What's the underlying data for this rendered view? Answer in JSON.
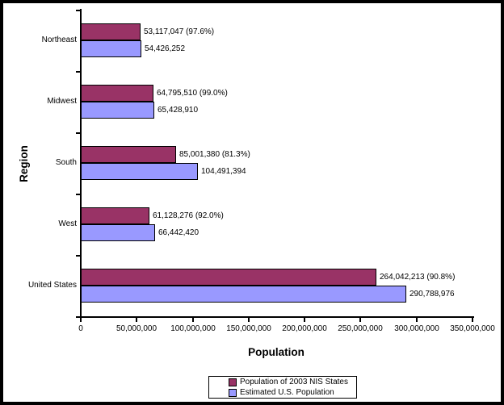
{
  "chart_data": {
    "type": "bar",
    "orientation": "horizontal",
    "title": "",
    "xlabel": "Population",
    "ylabel": "Region",
    "xlim": [
      0,
      350000000
    ],
    "x_tick_values": [
      0,
      50000000,
      100000000,
      150000000,
      200000000,
      250000000,
      300000000,
      350000000
    ],
    "x_tick_labels": [
      "0",
      "50,000,000",
      "100,000,000",
      "150,000,000",
      "200,000,000",
      "250,000,000",
      "300,000,000",
      "350,000,000"
    ],
    "categories": [
      "Northeast",
      "Midwest",
      "South",
      "West",
      "United States"
    ],
    "series": [
      {
        "name": "Population of 2003 NIS States",
        "color": "#993366",
        "values": [
          53117047,
          64795510,
          85001380,
          61128276,
          264042213
        ],
        "data_labels": [
          "53,117,047 (97.6%)",
          "64,795,510 (99.0%)",
          "85,001,380 (81.3%)",
          "61,128,276 (92.0%)",
          "264,042,213 (90.8%)"
        ]
      },
      {
        "name": "Estimated U.S. Population",
        "color": "#9999FF",
        "values": [
          54426252,
          65428910,
          104491394,
          66442420,
          290788976
        ],
        "data_labels": [
          "54,426,252",
          "65,428,910",
          "104,491,394",
          "66,442,420",
          "290,788,976"
        ]
      }
    ],
    "grid": false,
    "legend_position": "bottom",
    "bar_border_color": "#000000",
    "axis_color": "#000000",
    "background_color": "#FFFFFF"
  }
}
